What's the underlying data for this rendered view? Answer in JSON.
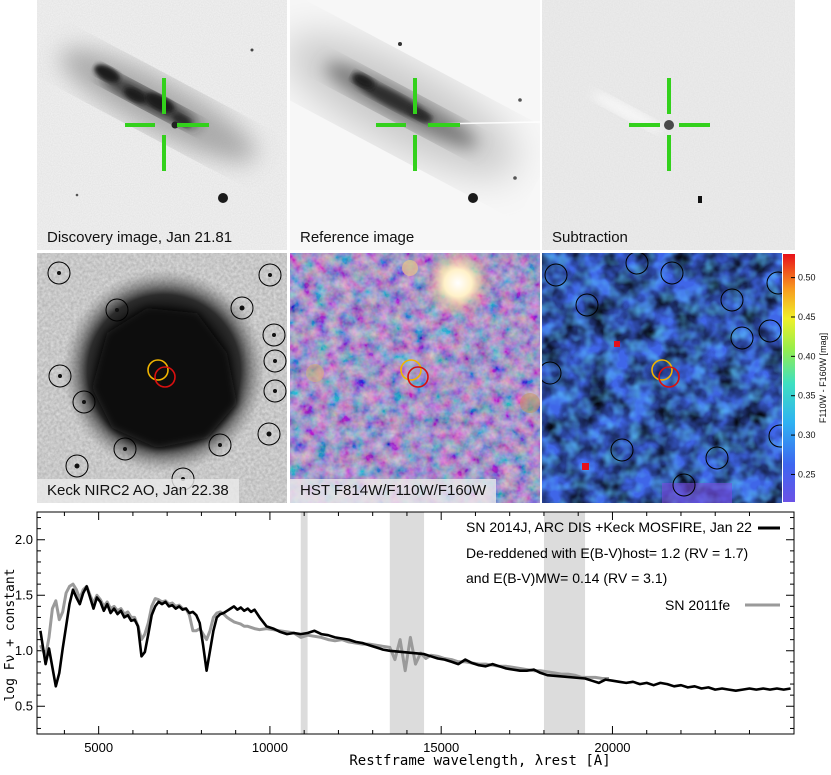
{
  "panels": {
    "discovery": {
      "caption": "Discovery image, Jan 21.81"
    },
    "reference": {
      "caption": "Reference image"
    },
    "subtraction": {
      "caption": "Subtraction"
    },
    "keck": {
      "caption": "Keck NIRC2 AO, Jan 22.38"
    },
    "hst": {
      "caption": "HST F814W/F110W/F160W"
    },
    "colormap": {
      "colorbar_label": "F110W - F160W [mag]",
      "colorbar_ticks": [
        "0.50",
        "0.45",
        "0.40",
        "0.35",
        "0.30",
        "0.25"
      ],
      "colorbar_tick_values": [
        0.5,
        0.45,
        0.4,
        0.35,
        0.3,
        0.25
      ],
      "colorbar_range": [
        0.215,
        0.53
      ]
    }
  },
  "colors": {
    "crosshair": "#33d11c",
    "circle_yellow": "#f0b400",
    "circle_red": "#d81010",
    "sn2014j_line": "#000000",
    "sn2011fe_line": "#9a9a9a",
    "telluric_band": "#dcdcdc"
  },
  "chart_data": {
    "type": "line",
    "xlabel": "Restframe wavelength, λrest [A]",
    "ylabel": "log Fν + constant",
    "xlim": [
      3200,
      25300
    ],
    "ylim": [
      0.25,
      2.25
    ],
    "xticks": [
      5000,
      10000,
      15000,
      20000
    ],
    "xtick_labels": [
      "5000",
      "10000",
      "15000",
      "20000"
    ],
    "yticks": [
      0.5,
      1.0,
      1.5,
      2.0
    ],
    "ytick_labels": [
      "0.5",
      "1.0",
      "1.5",
      "2.0"
    ],
    "legend": {
      "sn2014j": "SN 2014J, ARC DIS +Keck MOSFIRE, Jan 22",
      "dereddened_line1": "De-reddened with E(B-V)host= 1.2 (RV = 1.7)",
      "dereddened_line2": "and  E(B-V)MW= 0.14 (RV = 3.1)",
      "sn2011fe": "SN 2011fe"
    },
    "shaded_bands": [
      [
        10900,
        11100
      ],
      [
        13500,
        14500
      ],
      [
        18000,
        19200
      ]
    ],
    "series": [
      {
        "name": "SN 2014J",
        "x": [
          3300,
          3450,
          3550,
          3650,
          3750,
          3850,
          3950,
          4050,
          4150,
          4250,
          4350,
          4450,
          4550,
          4650,
          4750,
          4850,
          4950,
          5050,
          5150,
          5250,
          5350,
          5450,
          5550,
          5650,
          5750,
          5850,
          5950,
          6050,
          6150,
          6250,
          6350,
          6450,
          6550,
          6650,
          6750,
          6850,
          6950,
          7050,
          7150,
          7250,
          7350,
          7450,
          7550,
          7650,
          7750,
          7850,
          7950,
          8050,
          8150,
          8250,
          8350,
          8450,
          8550,
          8650,
          8750,
          8850,
          8950,
          9050,
          9150,
          9250,
          9350,
          9450,
          9550,
          9700,
          9900,
          10100,
          10300,
          10500,
          10700,
          10900,
          11100,
          11300,
          11500,
          11700,
          11900,
          12100,
          12300,
          12500,
          12700,
          12900,
          13100,
          13300,
          13500,
          14500,
          14700,
          14900,
          15100,
          15300,
          15500,
          15700,
          15900,
          16100,
          16300,
          16500,
          16700,
          16900,
          17100,
          17300,
          17500,
          17700,
          17900,
          18100,
          19200,
          19400,
          19600,
          19800,
          20000,
          20200,
          20400,
          20600,
          20800,
          21000,
          21200,
          21400,
          21600,
          21800,
          22000,
          22200,
          22400,
          22600,
          22800,
          23000,
          23200,
          23400,
          23600,
          23800,
          24000,
          24200,
          24400,
          24600,
          24800,
          25000,
          25200
        ],
        "y": [
          1.18,
          0.88,
          1.02,
          0.85,
          0.68,
          0.8,
          1.02,
          1.22,
          1.42,
          1.55,
          1.48,
          1.42,
          1.52,
          1.58,
          1.48,
          1.38,
          1.48,
          1.44,
          1.36,
          1.42,
          1.34,
          1.38,
          1.33,
          1.36,
          1.3,
          1.32,
          1.27,
          1.28,
          1.22,
          0.95,
          0.99,
          1.15,
          1.32,
          1.4,
          1.44,
          1.42,
          1.44,
          1.4,
          1.41,
          1.38,
          1.4,
          1.37,
          1.38,
          1.34,
          1.35,
          1.32,
          1.25,
          1.05,
          0.82,
          1.0,
          1.18,
          1.3,
          1.33,
          1.34,
          1.36,
          1.38,
          1.4,
          1.37,
          1.39,
          1.36,
          1.38,
          1.35,
          1.37,
          1.3,
          1.22,
          1.2,
          1.17,
          1.15,
          1.16,
          1.15,
          1.16,
          1.18,
          1.15,
          1.14,
          1.12,
          1.11,
          1.1,
          1.08,
          1.07,
          1.05,
          1.03,
          1.01,
          1.0,
          0.97,
          0.95,
          0.93,
          0.92,
          0.9,
          0.88,
          0.92,
          0.89,
          0.87,
          0.86,
          0.88,
          0.86,
          0.84,
          0.83,
          0.82,
          0.82,
          0.83,
          0.8,
          0.78,
          0.75,
          0.73,
          0.71,
          0.74,
          0.73,
          0.72,
          0.71,
          0.72,
          0.7,
          0.71,
          0.69,
          0.71,
          0.7,
          0.68,
          0.69,
          0.67,
          0.68,
          0.66,
          0.67,
          0.65,
          0.66,
          0.65,
          0.64,
          0.65,
          0.66,
          0.65,
          0.66,
          0.65,
          0.66,
          0.65,
          0.66
        ]
      },
      {
        "name": "SN 2011fe",
        "x": [
          3300,
          3450,
          3550,
          3650,
          3750,
          3850,
          3950,
          4050,
          4150,
          4250,
          4350,
          4450,
          4550,
          4650,
          4750,
          4850,
          4950,
          5050,
          5150,
          5250,
          5350,
          5450,
          5550,
          5650,
          5750,
          5850,
          5950,
          6050,
          6150,
          6250,
          6350,
          6450,
          6550,
          6650,
          6750,
          6850,
          6950,
          7050,
          7150,
          7250,
          7350,
          7450,
          7550,
          7650,
          7750,
          7850,
          7950,
          8050,
          8150,
          8250,
          8350,
          8450,
          8550,
          8650,
          8750,
          8850,
          8950,
          9050,
          9150,
          9250,
          9350,
          9450,
          9550,
          9700,
          9900,
          10100,
          10300,
          10500,
          10700,
          10900,
          11100,
          11300,
          11500,
          11700,
          11900,
          12100,
          12300,
          12500,
          12700,
          12900,
          13100,
          13300,
          13500,
          13650,
          13800,
          13950,
          14100,
          14250,
          14400,
          14550,
          14700,
          14900,
          15100,
          15300,
          15500,
          15700,
          15900,
          16100,
          16300,
          16500,
          16700,
          16900,
          17100,
          17300,
          17500,
          17700,
          17900,
          18100,
          18300,
          18500,
          18700,
          18900,
          19100,
          19300,
          19500,
          19700,
          19900
        ],
        "y": [
          1.05,
          0.95,
          1.12,
          1.38,
          1.45,
          1.28,
          1.35,
          1.52,
          1.58,
          1.6,
          1.55,
          1.47,
          1.55,
          1.58,
          1.5,
          1.43,
          1.5,
          1.46,
          1.4,
          1.44,
          1.38,
          1.4,
          1.36,
          1.38,
          1.33,
          1.35,
          1.3,
          1.3,
          1.22,
          1.1,
          1.15,
          1.25,
          1.4,
          1.47,
          1.46,
          1.44,
          1.45,
          1.42,
          1.43,
          1.4,
          1.41,
          1.38,
          1.38,
          1.32,
          1.18,
          1.18,
          1.2,
          1.15,
          1.1,
          1.18,
          1.3,
          1.34,
          1.35,
          1.33,
          1.3,
          1.28,
          1.26,
          1.25,
          1.24,
          1.22,
          1.22,
          1.21,
          1.2,
          1.19,
          1.2,
          1.19,
          1.18,
          1.17,
          1.16,
          1.12,
          1.14,
          1.13,
          1.12,
          1.1,
          1.09,
          1.1,
          1.08,
          1.07,
          1.06,
          1.06,
          1.05,
          1.04,
          1.03,
          0.92,
          1.1,
          0.82,
          1.12,
          0.88,
          0.98,
          0.93,
          0.96,
          0.95,
          0.93,
          0.92,
          0.9,
          0.9,
          0.89,
          0.88,
          0.88,
          0.87,
          0.86,
          0.86,
          0.85,
          0.84,
          0.83,
          0.82,
          0.82,
          0.81,
          0.8,
          0.79,
          0.79,
          0.78,
          0.76,
          0.76,
          0.76,
          0.75,
          0.75
        ]
      }
    ]
  }
}
